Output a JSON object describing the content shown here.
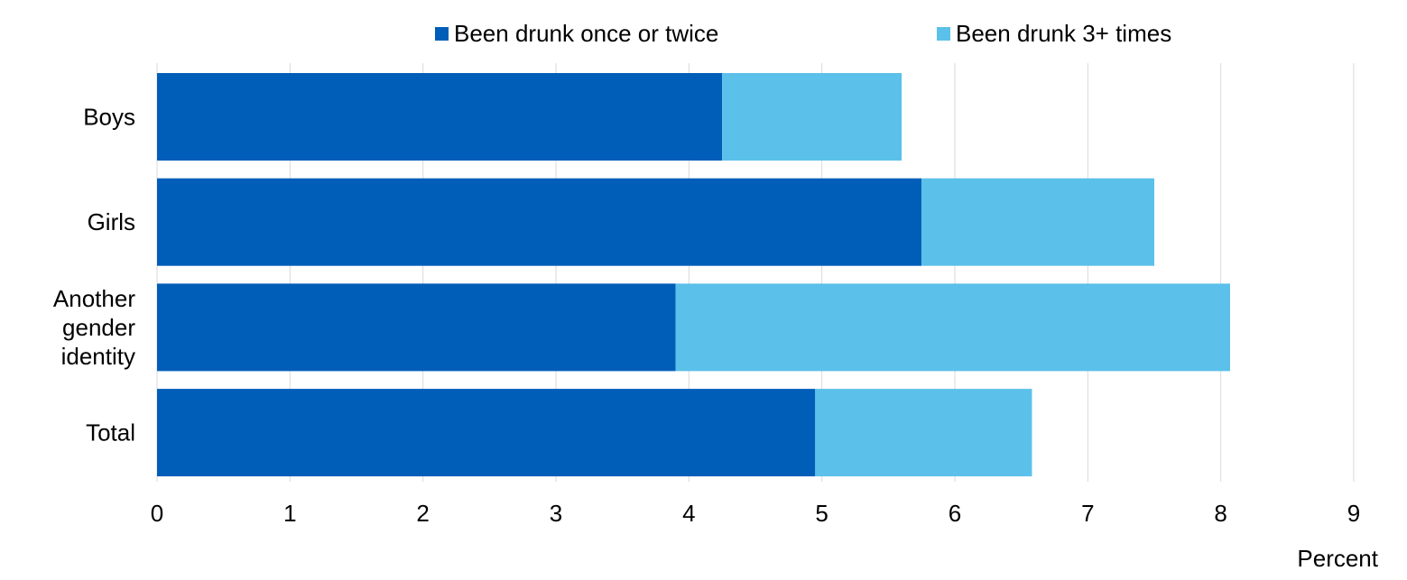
{
  "chart_data": {
    "type": "bar",
    "orientation": "horizontal",
    "stacked": true,
    "categories": [
      "Boys",
      "Girls",
      "Another gender identity",
      "Total"
    ],
    "category_lines": [
      [
        "Boys"
      ],
      [
        "Girls"
      ],
      [
        "Another",
        "gender",
        "identity"
      ],
      [
        "Total"
      ]
    ],
    "series": [
      {
        "name": "Been drunk once or twice",
        "values": [
          4.25,
          5.75,
          3.9,
          4.95
        ],
        "color": "#005EB8"
      },
      {
        "name": "Been drunk 3+ times",
        "values": [
          1.35,
          1.75,
          4.17,
          1.63
        ],
        "color": "#5BC0EA"
      }
    ],
    "xlabel": "Percent",
    "xlim": [
      0,
      9
    ],
    "xticks": [
      0,
      1,
      2,
      3,
      4,
      5,
      6,
      7,
      8,
      9
    ],
    "grid": true,
    "legend_position": "top"
  }
}
